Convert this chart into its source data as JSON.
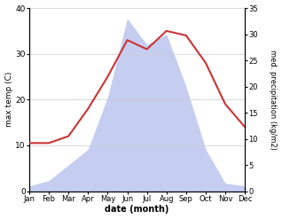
{
  "months": [
    "Jan",
    "Feb",
    "Mar",
    "Apr",
    "May",
    "Jun",
    "Jul",
    "Aug",
    "Sep",
    "Oct",
    "Nov",
    "Dec"
  ],
  "max_temp": [
    10.5,
    10.5,
    12.0,
    18.0,
    25.0,
    33.0,
    31.0,
    35.0,
    34.0,
    28.0,
    19.0,
    14.0
  ],
  "precipitation": [
    1.0,
    2.0,
    5.0,
    8.0,
    18.0,
    33.0,
    28.0,
    30.0,
    20.0,
    8.0,
    1.5,
    1.0
  ],
  "temp_color": "#cc3333",
  "precip_fill_color": "#c5cef0",
  "temp_ylim": [
    0,
    40
  ],
  "precip_ylim": [
    0,
    35
  ],
  "xlabel": "date (month)",
  "ylabel_left": "max temp (C)",
  "ylabel_right": "med. precipitation (kg/m2)",
  "bg_color": "#ffffff"
}
